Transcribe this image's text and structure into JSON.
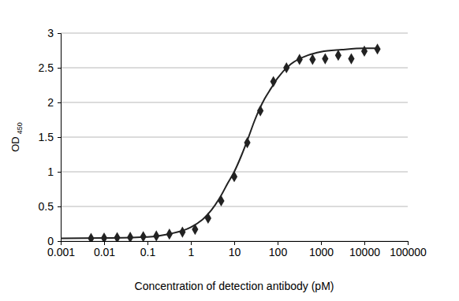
{
  "chart_data": {
    "type": "scatter",
    "xlabel": "Concentration of detection antibody (pM)",
    "ylabel": "OD 450",
    "log": "x",
    "grid": true,
    "xlim": [
      0.001,
      100000
    ],
    "xticks": [
      0.001,
      0.01,
      0.1,
      1,
      10,
      100,
      1000,
      10000,
      100000
    ],
    "ylim": [
      0,
      3
    ],
    "yticks": [
      0,
      0.5,
      1,
      1.5,
      2,
      2.5,
      3
    ],
    "series": [
      {
        "type": "scatter",
        "marker": "diamond",
        "color": "#222222",
        "x": [
          0.005,
          0.01,
          0.02,
          0.04,
          0.08,
          0.16,
          0.32,
          0.64,
          1.25,
          2.5,
          5,
          10,
          20,
          40,
          80,
          160,
          320,
          640,
          1250,
          2500,
          5000,
          10000,
          20000
        ],
        "values": [
          0.04,
          0.045,
          0.05,
          0.055,
          0.065,
          0.075,
          0.1,
          0.13,
          0.17,
          0.33,
          0.58,
          0.93,
          1.42,
          1.88,
          2.3,
          2.5,
          2.62,
          2.62,
          2.63,
          2.68,
          2.63,
          2.74,
          2.77
        ]
      },
      {
        "type": "line",
        "line_style": "solid",
        "color": "#222222",
        "x": [
          0.001,
          0.01,
          0.1,
          0.3,
          1,
          2,
          3,
          5,
          7,
          10,
          15,
          20,
          30,
          50,
          70,
          100,
          200,
          500,
          1000,
          3000,
          10000,
          20000
        ],
        "values": [
          0.04,
          0.045,
          0.06,
          0.1,
          0.2,
          0.33,
          0.45,
          0.66,
          0.83,
          1.0,
          1.25,
          1.45,
          1.75,
          2.05,
          2.2,
          2.35,
          2.55,
          2.68,
          2.73,
          2.76,
          2.78,
          2.78
        ]
      }
    ]
  }
}
